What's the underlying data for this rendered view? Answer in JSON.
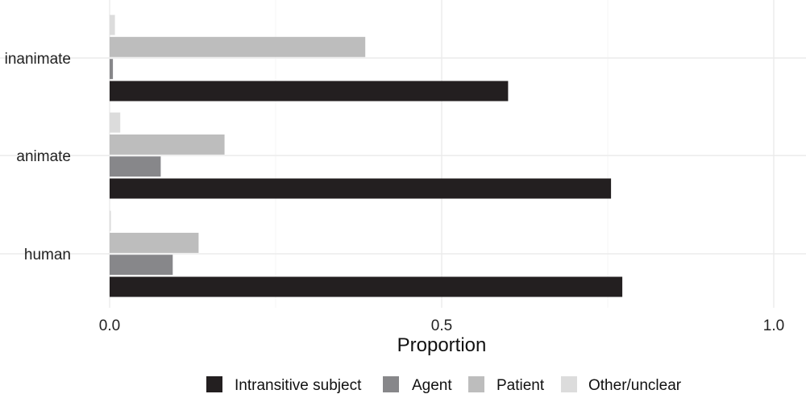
{
  "chart_data": {
    "type": "bar",
    "orientation": "horizontal",
    "categories": [
      "inanimate",
      "animate",
      "human"
    ],
    "series": [
      {
        "name": "Intransitive subject",
        "color": "#231f20",
        "values": [
          0.6,
          0.755,
          0.772
        ]
      },
      {
        "name": "Agent",
        "color": "#87878a",
        "values": [
          0.005,
          0.077,
          0.095
        ]
      },
      {
        "name": "Patient",
        "color": "#bdbdbd",
        "values": [
          0.385,
          0.173,
          0.134
        ]
      },
      {
        "name": "Other/unclear",
        "color": "#dcdcdc",
        "values": [
          0.008,
          0.016,
          0.002
        ]
      }
    ],
    "xlabel": "Proportion",
    "ylabel": "",
    "xlim": [
      0,
      1.0
    ],
    "x_ticks": [
      "0.0",
      "0.5",
      "1.0"
    ],
    "grid": true,
    "legend_position": "bottom"
  }
}
